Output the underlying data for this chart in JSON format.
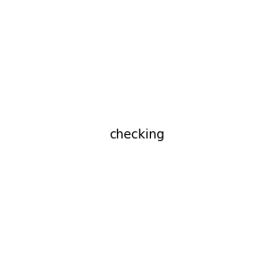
{
  "bg": "#e8e8e8",
  "black": "#000000",
  "blue": "#0000ff",
  "red": "#cc0000",
  "orange": "#cc6600",
  "lw": 1.5,
  "lw2": 2.2
}
